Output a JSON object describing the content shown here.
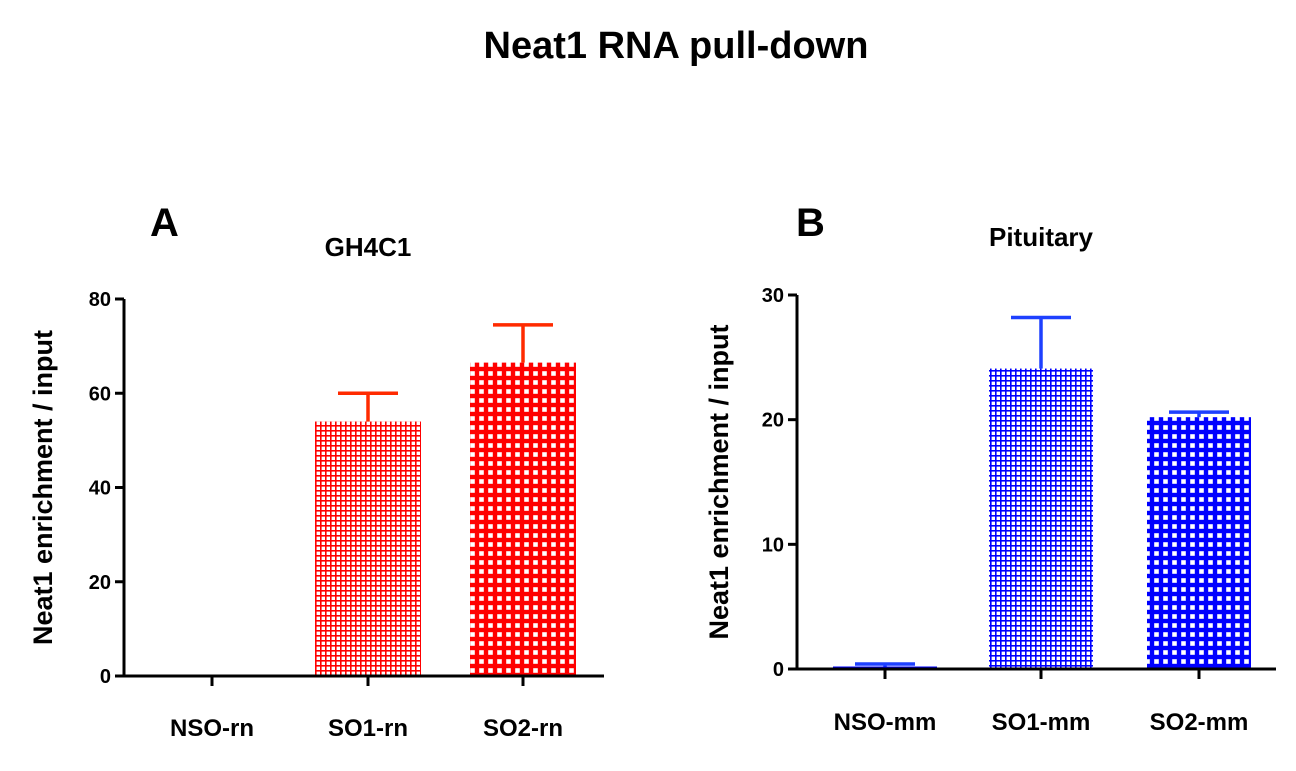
{
  "figure": {
    "title": "Neat1 RNA pull-down"
  },
  "chart_data": [
    {
      "type": "bar",
      "panel": "A",
      "title": "GH4C1",
      "ylabel": "Neat1 enrichment / input",
      "xlabel": "",
      "ylim": [
        0,
        80
      ],
      "yticks": [
        0,
        20,
        40,
        60,
        80
      ],
      "categories": [
        "NSO-rn",
        "SO1-rn",
        "SO2-rn"
      ],
      "values": [
        0,
        54,
        66.5
      ],
      "errors": [
        0,
        6,
        8
      ],
      "patterns": [
        "none",
        "fine-grid",
        "coarse-grid"
      ],
      "color": "#ff0000",
      "error_color": "#ff2a00"
    },
    {
      "type": "bar",
      "panel": "B",
      "title": "Pituitary",
      "ylabel": "Neat1 enrichment / input",
      "xlabel": "",
      "ylim": [
        0,
        30
      ],
      "yticks": [
        0,
        10,
        20,
        30
      ],
      "categories": [
        "NSO-mm",
        "SO1-mm",
        "SO2-mm"
      ],
      "values": [
        0.2,
        24.1,
        20.2
      ],
      "errors": [
        0.2,
        4.1,
        0.4
      ],
      "patterns": [
        "solid",
        "fine-grid",
        "coarse-grid"
      ],
      "color": "#0000ff",
      "error_color": "#1e40ff"
    }
  ]
}
